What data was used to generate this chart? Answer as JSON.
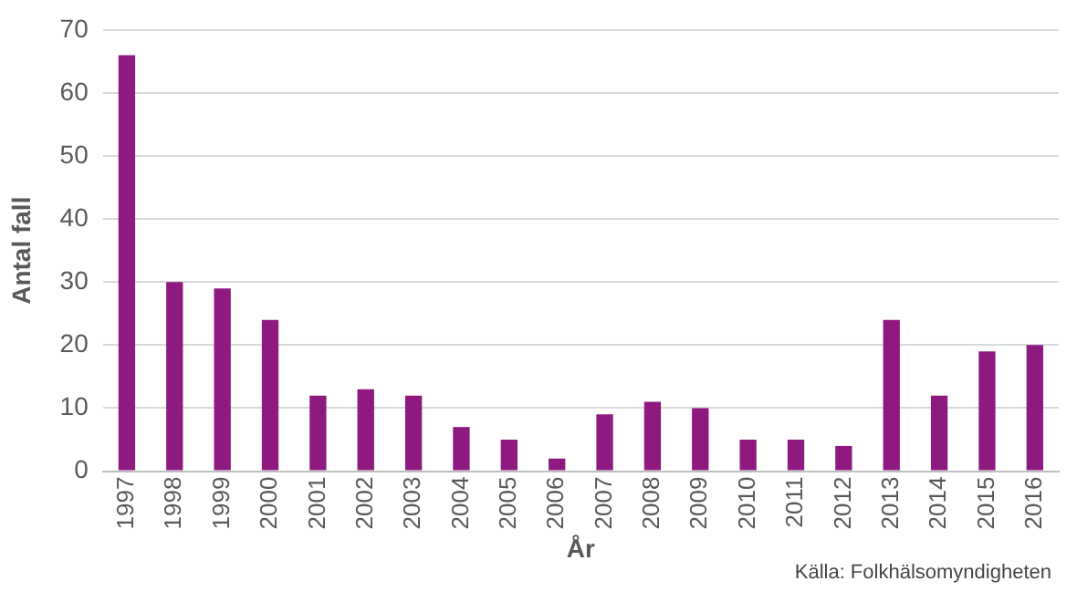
{
  "chart_data": {
    "type": "bar",
    "xlabel": "År",
    "ylabel": "Antal fall",
    "categories": [
      "1997",
      "1998",
      "1999",
      "2000",
      "2001",
      "2002",
      "2003",
      "2004",
      "2005",
      "2006",
      "2007",
      "2008",
      "2009",
      "2010",
      "2011",
      "2012",
      "2013",
      "2014",
      "2015",
      "2016"
    ],
    "values": [
      66,
      30,
      29,
      24,
      12,
      13,
      12,
      7,
      5,
      2,
      9,
      11,
      10,
      5,
      5,
      4,
      24,
      12,
      19,
      20
    ],
    "color": "#8e1a7f",
    "ylim": [
      0,
      70
    ],
    "yticks": [
      0,
      10,
      20,
      30,
      40,
      50,
      60,
      70
    ],
    "grid": "y",
    "legend": false,
    "annotations": [
      "Källa: Folkhälsomyndigheten"
    ]
  }
}
